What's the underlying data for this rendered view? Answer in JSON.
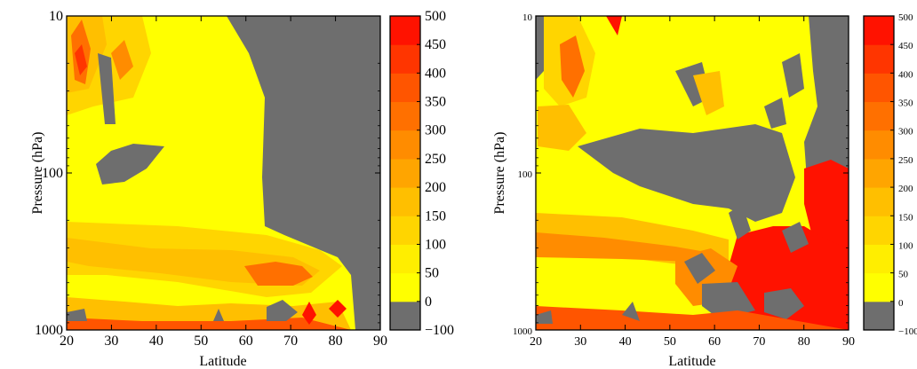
{
  "chart_data": [
    {
      "type": "heatmap",
      "title": "",
      "xlabel": "Latitude",
      "ylabel": "Pressure (hPa)",
      "x_ticks": [
        20,
        30,
        40,
        50,
        60,
        70,
        80,
        90
      ],
      "y_ticks": [
        "10",
        "100",
        "1000"
      ],
      "y_scale": "log",
      "y_reversed": true,
      "xlim": [
        20,
        90
      ],
      "ylim": [
        1000,
        10
      ],
      "colorbar": {
        "ticks": [
          "500",
          "450",
          "400",
          "350",
          "300",
          "250",
          "200",
          "150",
          "100",
          "50",
          "0",
          "−100"
        ],
        "levels": [
          -100,
          0,
          50,
          100,
          150,
          200,
          250,
          300,
          350,
          400,
          450,
          500
        ],
        "colors": [
          "#6e6e6e",
          "#ffff00",
          "#ffee00",
          "#ffd500",
          "#ffbf00",
          "#ffa500",
          "#ff8c00",
          "#ff7000",
          "#ff5500",
          "#ff3500",
          "#ff1200"
        ]
      },
      "grid": false
    },
    {
      "type": "heatmap",
      "title": "",
      "xlabel": "Latitude",
      "ylabel": "Pressure (hPa)",
      "x_ticks": [
        20,
        30,
        40,
        50,
        60,
        70,
        80,
        90
      ],
      "y_ticks": [
        "10",
        "100",
        "1000"
      ],
      "y_scale": "log",
      "y_reversed": true,
      "xlim": [
        20,
        90
      ],
      "ylim": [
        1000,
        10
      ],
      "colorbar": {
        "ticks": [
          "500",
          "450",
          "400",
          "350",
          "300",
          "250",
          "200",
          "150",
          "100",
          "50",
          "0",
          "−100"
        ],
        "levels": [
          -100,
          0,
          50,
          100,
          150,
          200,
          250,
          300,
          350,
          400,
          450,
          500
        ],
        "colors": [
          "#6e6e6e",
          "#ffff00",
          "#ffee00",
          "#ffd500",
          "#ffbf00",
          "#ffa500",
          "#ff8c00",
          "#ff7000",
          "#ff5500",
          "#ff3500",
          "#ff1200"
        ]
      },
      "grid": false
    }
  ]
}
